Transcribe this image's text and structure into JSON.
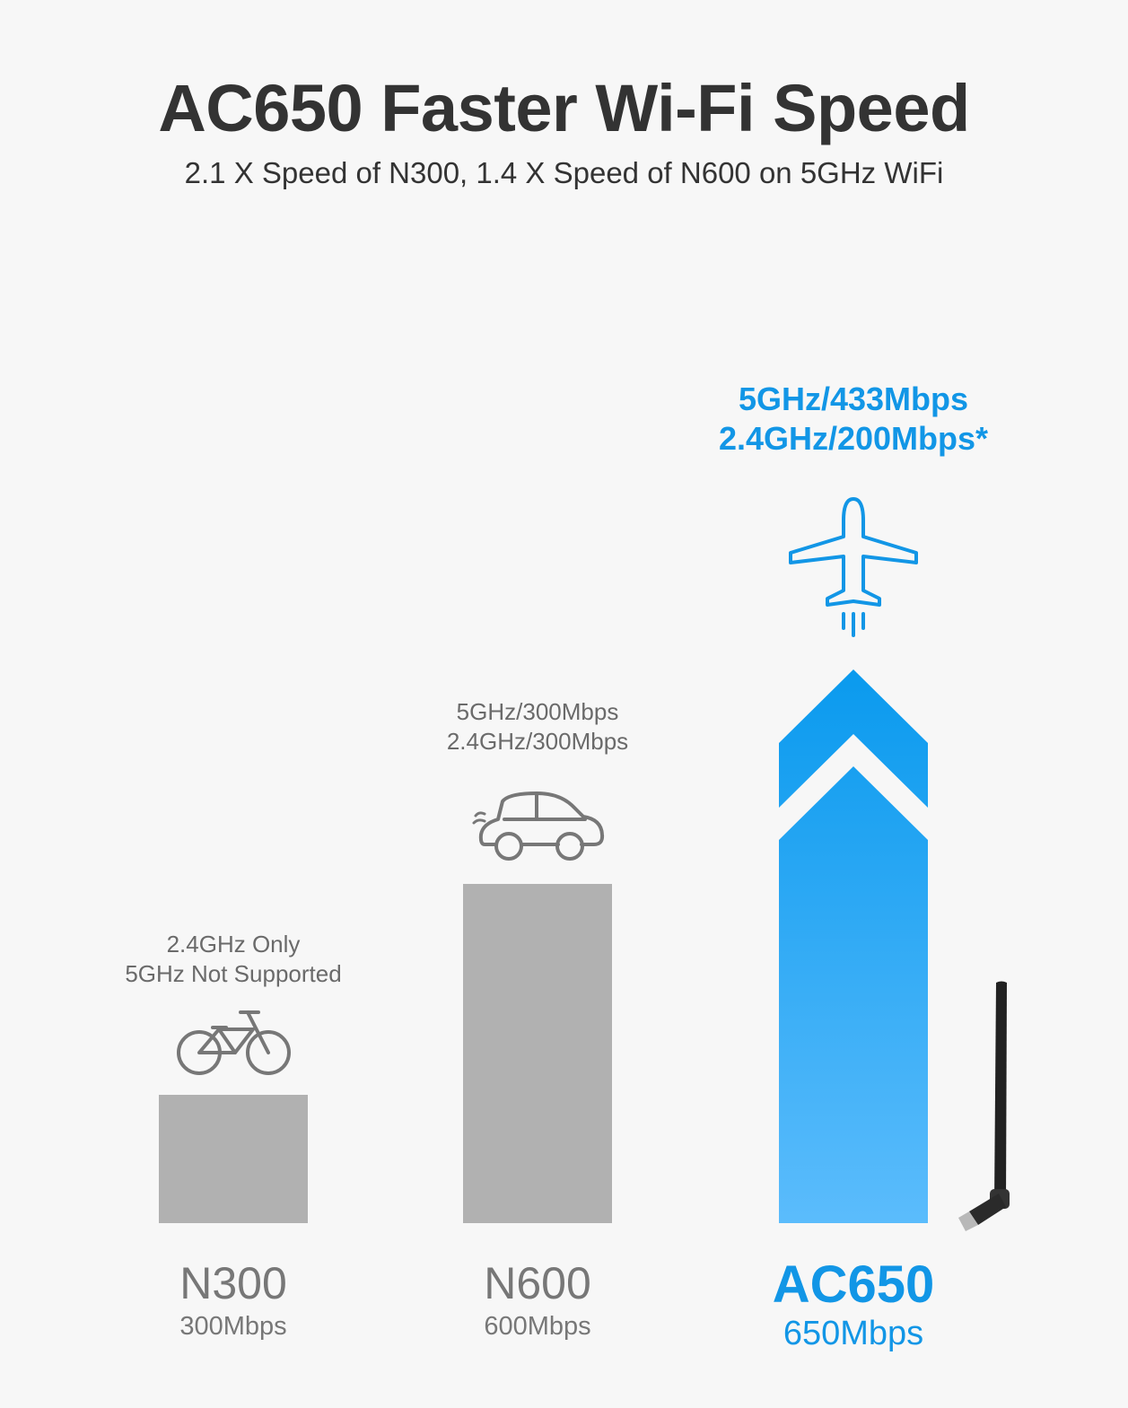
{
  "header": {
    "title": "AC650 Faster Wi-Fi Speed",
    "subtitle": "2.1 X Speed of N300, 1.4 X Speed of N600 on 5GHz WiFi"
  },
  "colors": {
    "gray_bar": "#b1b1b1",
    "blue_top": "#0a9aee",
    "blue_bottom": "#5bbcfc",
    "accent_text": "#1296e6",
    "label_gray": "#777777",
    "note_gray": "#6a6a6a"
  },
  "chart_data": {
    "type": "bar",
    "categories": [
      "N300",
      "N600",
      "AC650"
    ],
    "values": [
      300,
      600,
      650
    ],
    "value_labels": [
      "300Mbps",
      "600Mbps",
      "650Mbps"
    ],
    "notes": [
      [
        "2.4GHz Only",
        "5GHz Not Supported"
      ],
      [
        "5GHz/300Mbps",
        "2.4GHz/300Mbps"
      ],
      [
        "5GHz/433Mbps",
        "2.4GHz/200Mbps*"
      ]
    ],
    "icons": [
      "bicycle-icon",
      "car-icon",
      "airplane-icon"
    ],
    "highlight_index": 2,
    "highlight_mark": "chevron-arrow"
  }
}
